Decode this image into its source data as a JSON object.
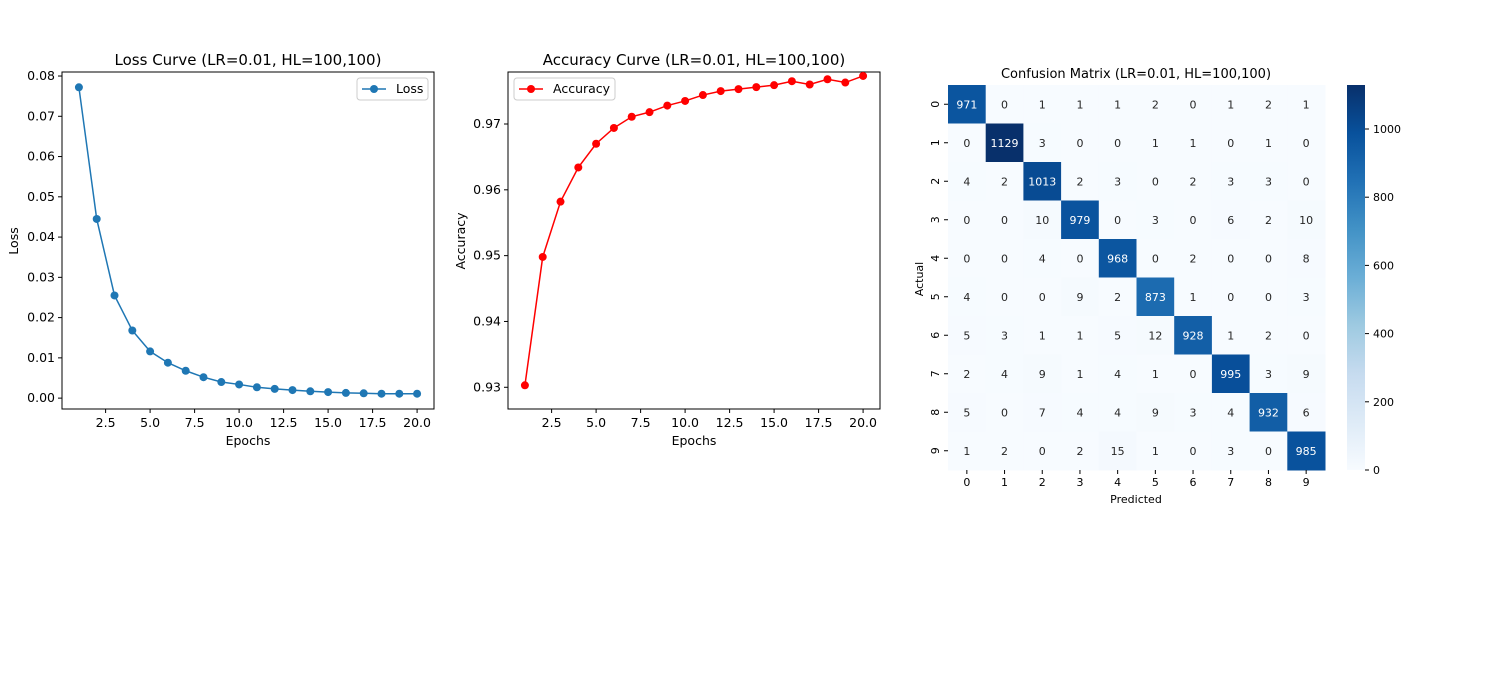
{
  "chart_data": [
    {
      "type": "line",
      "title": "Loss Curve (LR=0.01, HL=100,100)",
      "xlabel": "Epochs",
      "ylabel": "Loss",
      "xlim": [
        0.05,
        20.95
      ],
      "ylim": [
        -0.0027,
        0.081
      ],
      "xticks": [
        "2.5",
        "5.0",
        "7.5",
        "10.0",
        "12.5",
        "15.0",
        "17.5",
        "20.0"
      ],
      "yticks": [
        "0.00",
        "0.01",
        "0.02",
        "0.03",
        "0.04",
        "0.05",
        "0.06",
        "0.07",
        "0.08"
      ],
      "legend": "top-right",
      "color": "#1f77b4",
      "series": [
        {
          "name": "Loss",
          "x": [
            1,
            2,
            3,
            4,
            5,
            6,
            7,
            8,
            9,
            10,
            11,
            12,
            13,
            14,
            15,
            16,
            17,
            18,
            19,
            20
          ],
          "values": [
            0.0772,
            0.0445,
            0.0255,
            0.0168,
            0.0116,
            0.0088,
            0.0068,
            0.0052,
            0.004,
            0.0034,
            0.0027,
            0.0023,
            0.002,
            0.0017,
            0.0015,
            0.0013,
            0.0012,
            0.0011,
            0.0011,
            0.0011
          ]
        }
      ]
    },
    {
      "type": "line",
      "title": "Accuracy Curve (LR=0.01, HL=100,100)",
      "xlabel": "Epochs",
      "ylabel": "Accuracy",
      "xlim": [
        0.05,
        20.95
      ],
      "ylim": [
        0.9267,
        0.9779
      ],
      "xticks": [
        "2.5",
        "5.0",
        "7.5",
        "10.0",
        "12.5",
        "15.0",
        "17.5",
        "20.0"
      ],
      "yticks": [
        "0.93",
        "0.94",
        "0.95",
        "0.96",
        "0.97"
      ],
      "legend": "top-left",
      "color": "#ff0000",
      "series": [
        {
          "name": "Accuracy",
          "x": [
            1,
            2,
            3,
            4,
            5,
            6,
            7,
            8,
            9,
            10,
            11,
            12,
            13,
            14,
            15,
            16,
            17,
            18,
            19,
            20
          ],
          "values": [
            0.9303,
            0.9498,
            0.9582,
            0.9634,
            0.967,
            0.9694,
            0.9711,
            0.9718,
            0.9728,
            0.9735,
            0.9744,
            0.975,
            0.9753,
            0.9756,
            0.9759,
            0.9765,
            0.976,
            0.9768,
            0.9763,
            0.9773
          ]
        }
      ]
    },
    {
      "type": "heatmap",
      "title": "Confusion Matrix (LR=0.01, HL=100,100)",
      "xlabel": "Predicted",
      "ylabel": "Actual",
      "x_categories": [
        "0",
        "1",
        "2",
        "3",
        "4",
        "5",
        "6",
        "7",
        "8",
        "9"
      ],
      "y_categories": [
        "0",
        "1",
        "2",
        "3",
        "4",
        "5",
        "6",
        "7",
        "8",
        "9"
      ],
      "colorbar_ticks": [
        "0",
        "200",
        "400",
        "600",
        "800",
        "1000"
      ],
      "colorbar_max": 1129,
      "colormap": "Blues",
      "matrix": [
        [
          971,
          0,
          1,
          1,
          1,
          2,
          0,
          1,
          2,
          1
        ],
        [
          0,
          1129,
          3,
          0,
          0,
          1,
          1,
          0,
          1,
          0
        ],
        [
          4,
          2,
          1013,
          2,
          3,
          0,
          2,
          3,
          3,
          0
        ],
        [
          0,
          0,
          10,
          979,
          0,
          3,
          0,
          6,
          2,
          10
        ],
        [
          0,
          0,
          4,
          0,
          968,
          0,
          2,
          0,
          0,
          8
        ],
        [
          4,
          0,
          0,
          9,
          2,
          873,
          1,
          0,
          0,
          3
        ],
        [
          5,
          3,
          1,
          1,
          5,
          12,
          928,
          1,
          2,
          0
        ],
        [
          2,
          4,
          9,
          1,
          4,
          1,
          0,
          995,
          3,
          9
        ],
        [
          5,
          0,
          7,
          4,
          4,
          9,
          3,
          4,
          932,
          6
        ],
        [
          1,
          2,
          0,
          2,
          15,
          1,
          0,
          3,
          0,
          985
        ]
      ]
    }
  ]
}
